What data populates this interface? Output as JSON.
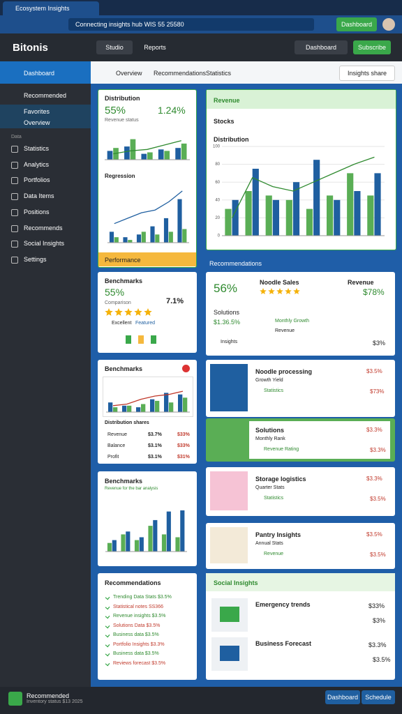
{
  "browser": {
    "tab": "Ecosystem Insights",
    "address": "Connecting insights hub WIS 55 25580",
    "button": "Dashboard"
  },
  "header": {
    "logo": "Bitonis",
    "tabs": [
      "Studio",
      "Reports"
    ],
    "dropdown": "Dashboard",
    "button": "Subscribe"
  },
  "sidebar": {
    "title": "Dashboard",
    "group": "Recommended",
    "sub": [
      "Favorites",
      "Overview"
    ],
    "section": "Data",
    "items": [
      "Statistics",
      "Analytics",
      "Portfolios",
      "Data Items",
      "Positions",
      "Recommends",
      "Social Insights",
      "Settings"
    ]
  },
  "toolbar": {
    "tabs": [
      "Overview",
      "Recommendations",
      "Statistics"
    ],
    "button": "Insights share"
  },
  "card1": {
    "title": "Distribution",
    "stat1": "55%",
    "stat2": "1.24%",
    "subtitle": "Revenue status",
    "chart": {
      "type": "bar",
      "ylim": [
        0,
        100
      ],
      "series": [
        {
          "color": "#1f5fa0",
          "values": [
            30,
            45,
            20,
            35,
            40
          ]
        },
        {
          "color": "#5aae55",
          "values": [
            40,
            70,
            25,
            30,
            55
          ]
        },
        {
          "type": "line",
          "color": "#2f8a2f",
          "values": [
            20,
            30,
            35,
            50,
            65
          ]
        }
      ]
    },
    "subtitle2": "Regression",
    "chart2": {
      "type": "bar",
      "ylim": [
        0,
        100
      ],
      "series": [
        {
          "color": "#1f5fa0",
          "values": [
            20,
            10,
            15,
            30,
            45,
            80
          ]
        },
        {
          "color": "#5aae55",
          "values": [
            10,
            5,
            20,
            15,
            20,
            25
          ]
        },
        {
          "type": "line",
          "color": "#1f5fa0",
          "values": [
            35,
            45,
            55,
            60,
            75,
            95
          ]
        }
      ]
    },
    "footer": "Performance"
  },
  "card2": {
    "title": "Revenue",
    "label1": "Stocks",
    "label2": "Distribution",
    "chart": {
      "type": "bar",
      "ylim": [
        0,
        100
      ],
      "yticks": [
        0,
        20,
        40,
        60,
        80,
        100
      ],
      "series": [
        {
          "color": "#5aae55",
          "values": [
            30,
            50,
            45,
            40,
            30,
            45,
            70,
            45
          ]
        },
        {
          "color": "#1f5fa0",
          "values": [
            40,
            75,
            40,
            60,
            85,
            40,
            50,
            70
          ]
        },
        {
          "type": "line",
          "color": "#2f8a2f",
          "values": [
            20,
            65,
            55,
            50,
            60,
            70,
            80,
            88
          ]
        }
      ]
    }
  },
  "section_label": "Recommendations",
  "card3": {
    "title": "Benchmarks",
    "stat": "55%",
    "note": "Comparison",
    "change": "7.1%",
    "rating_label": "Excellent",
    "rating_value": "Featured"
  },
  "card4": {
    "stat": "56%",
    "title": "Noodle Sales",
    "right_label": "Revenue",
    "right_value": "$78%",
    "sub_label": "Solutions",
    "sub_value": "$1.36.5%",
    "notes": [
      "Monthly Growth",
      "Revenue"
    ],
    "footer_label": "Insights",
    "footer_value": "$3%"
  },
  "card5": {
    "title": "Benchmarks",
    "chart": {
      "type": "bar",
      "ylim": [
        0,
        100
      ],
      "series": [
        {
          "color": "#1f5fa0",
          "values": [
            30,
            20,
            15,
            40,
            60,
            55
          ]
        },
        {
          "color": "#5aae55",
          "values": [
            15,
            20,
            25,
            35,
            30,
            45
          ]
        },
        {
          "type": "line",
          "color": "#c0392b",
          "values": [
            20,
            25,
            40,
            50,
            55,
            65
          ]
        }
      ]
    },
    "subtitle": "Distribution shares",
    "rows": [
      [
        "Revenue",
        "$3.7%",
        "$33%"
      ],
      [
        "Balance",
        "$3.1%",
        "$33%"
      ],
      [
        "Profit",
        "$3.1%",
        "$31%"
      ]
    ]
  },
  "products": [
    {
      "title": "Noodle processing",
      "sub": "Growth Yield",
      "meta": "Statistics",
      "value": "$3.5%",
      "value2": "$73%"
    },
    {
      "title": "Solutions",
      "sub": "Monthly Rank",
      "meta": "Revenue Rating",
      "value": "$3.3%",
      "value2": "$3.3%"
    },
    {
      "title": "Storage logistics",
      "sub": "Quarter Stats",
      "meta": "Statistics",
      "value": "$3.3%",
      "value2": "$3.5%"
    },
    {
      "title": "Pantry Insights",
      "sub": "Annual Stats",
      "meta": "Revenue",
      "value": "$3.5%",
      "value2": "$3.5%"
    }
  ],
  "card6": {
    "title": "Benchmarks",
    "subtitle": "Revenue for the bar analysis",
    "chart": {
      "type": "bar",
      "ylim": [
        0,
        100
      ],
      "series": [
        {
          "color": "#5aae55",
          "values": [
            15,
            30,
            20,
            45,
            30,
            25
          ]
        },
        {
          "color": "#1f5fa0",
          "values": [
            20,
            35,
            25,
            55,
            70,
            72
          ]
        }
      ]
    }
  },
  "card7": {
    "title": "Recommendations",
    "items": [
      "Trending Data Stats $3.5%",
      "Statistical notes SS366",
      "Revenue insights $3.5%",
      "Solutions Data $3.5%",
      "Business data $3.5%",
      "Portfolio Insights $3.3%",
      "Business data $3.5%",
      "Reviews forecast $3.5%"
    ]
  },
  "card8": {
    "title": "Social Insights",
    "items": [
      {
        "title": "Emergency trends",
        "value1": "$33%",
        "value2": "$3%"
      },
      {
        "title": "Business Forecast",
        "value1": "$3.3%",
        "value2": "$3.5%"
      }
    ]
  },
  "status": {
    "title": "Recommended",
    "sub": "Inventory status $13 2025",
    "buttons": [
      "Dashboard",
      "Schedule"
    ]
  }
}
